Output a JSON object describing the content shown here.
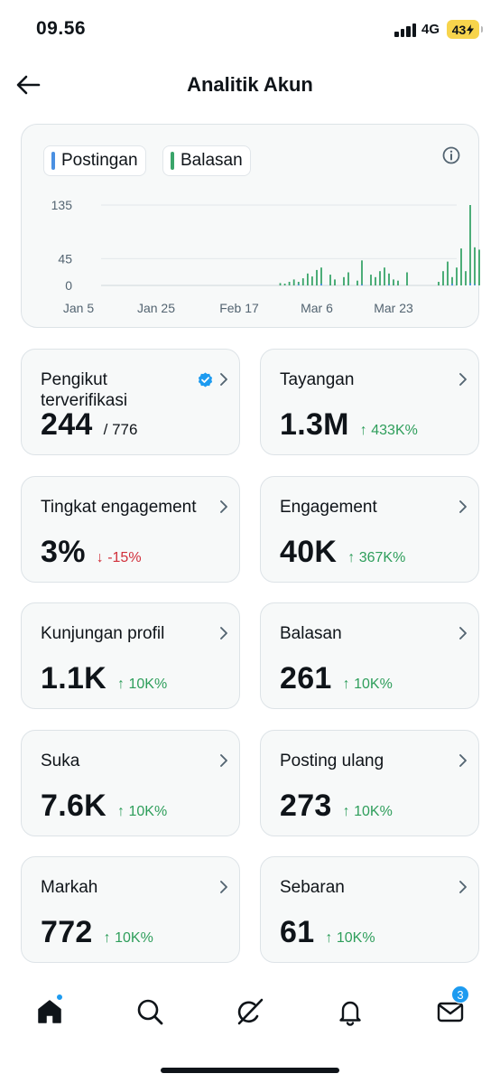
{
  "status_bar": {
    "time": "09.56",
    "network": "4G",
    "battery": "43"
  },
  "header": {
    "title": "Analitik Akun"
  },
  "chart_data": {
    "type": "bar",
    "legend": [
      {
        "name": "Postingan",
        "color": "#4a90e2"
      },
      {
        "name": "Balasan",
        "color": "#3aa56a"
      }
    ],
    "legend_placement": "top-left",
    "x_ticks": [
      "Jan 5",
      "Jan 25",
      "Feb 17",
      "Mar 6",
      "Mar 23"
    ],
    "y_ticks": [
      0,
      45,
      135
    ],
    "ylim": [
      0,
      135
    ],
    "grid": true,
    "start_date": "Jan 5",
    "series": [
      {
        "name": "Balasan",
        "color": "#3aa56a",
        "points": [
          [
            "Feb 26",
            4
          ],
          [
            "Feb 27",
            3
          ],
          [
            "Feb 28",
            6
          ],
          [
            "Mar 1",
            10
          ],
          [
            "Mar 2",
            6
          ],
          [
            "Mar 3",
            12
          ],
          [
            "Mar 4",
            20
          ],
          [
            "Mar 5",
            15
          ],
          [
            "Mar 6",
            26
          ],
          [
            "Mar 7",
            30
          ],
          [
            "Mar 9",
            18
          ],
          [
            "Mar 10",
            10
          ],
          [
            "Mar 12",
            14
          ],
          [
            "Mar 13",
            22
          ],
          [
            "Mar 15",
            8
          ],
          [
            "Mar 16",
            42
          ],
          [
            "Mar 18",
            18
          ],
          [
            "Mar 19",
            14
          ],
          [
            "Mar 20",
            24
          ],
          [
            "Mar 21",
            30
          ],
          [
            "Mar 22",
            20
          ],
          [
            "Mar 23",
            10
          ],
          [
            "Mar 24",
            8
          ],
          [
            "Mar 26",
            22
          ],
          [
            "Apr 2",
            6
          ],
          [
            "Apr 3",
            24
          ],
          [
            "Apr 4",
            40
          ],
          [
            "Apr 5",
            14
          ],
          [
            "Apr 6",
            30
          ],
          [
            "Apr 7",
            62
          ],
          [
            "Apr 8",
            24
          ],
          [
            "Apr 9",
            135
          ],
          [
            "Apr 10",
            64
          ],
          [
            "Apr 11",
            60
          ],
          [
            "Apr 12",
            36
          ]
        ]
      },
      {
        "name": "Postingan",
        "color": "#4a90e2",
        "points": [
          [
            "Mar 2",
            2
          ],
          [
            "Mar 7",
            3
          ],
          [
            "Mar 16",
            2
          ],
          [
            "Mar 22",
            2
          ],
          [
            "Apr 5",
            3
          ],
          [
            "Apr 9",
            4
          ],
          [
            "Apr 10",
            2
          ]
        ]
      }
    ]
  },
  "icons": {
    "back": "arrow-left-icon",
    "info": "info-icon",
    "verified": "verified-badge-icon",
    "chevron": "chevron-right-icon",
    "home": "home-icon",
    "search": "search-icon",
    "grok": "grok-icon",
    "notifications": "bell-icon",
    "messages": "mail-icon"
  },
  "metrics": [
    {
      "label": "Pengikut terverifikasi",
      "value": "244",
      "sub": "/ 776",
      "change": "",
      "direction": ""
    },
    {
      "label": "Tayangan",
      "value": "1.3M",
      "sub": "",
      "change": "433K%",
      "direction": "up"
    },
    {
      "label": "Tingkat engagement",
      "value": "3%",
      "sub": "",
      "change": "-15%",
      "direction": "down"
    },
    {
      "label": "Engagement",
      "value": "40K",
      "sub": "",
      "change": "367K%",
      "direction": "up"
    },
    {
      "label": "Kunjungan profil",
      "value": "1.1K",
      "sub": "",
      "change": "10K%",
      "direction": "up"
    },
    {
      "label": "Balasan",
      "value": "261",
      "sub": "",
      "change": "10K%",
      "direction": "up"
    },
    {
      "label": "Suka",
      "value": "7.6K",
      "sub": "",
      "change": "10K%",
      "direction": "up"
    },
    {
      "label": "Posting ulang",
      "value": "273",
      "sub": "",
      "change": "10K%",
      "direction": "up"
    },
    {
      "label": "Markah",
      "value": "772",
      "sub": "",
      "change": "10K%",
      "direction": "up"
    },
    {
      "label": "Sebaran",
      "value": "61",
      "sub": "",
      "change": "10K%",
      "direction": "up"
    }
  ],
  "bottom_nav": {
    "messages_badge": "3"
  },
  "colors": {
    "accent": "#1d9bf0",
    "positive": "#2e9e5b",
    "negative": "#d12f3a"
  }
}
